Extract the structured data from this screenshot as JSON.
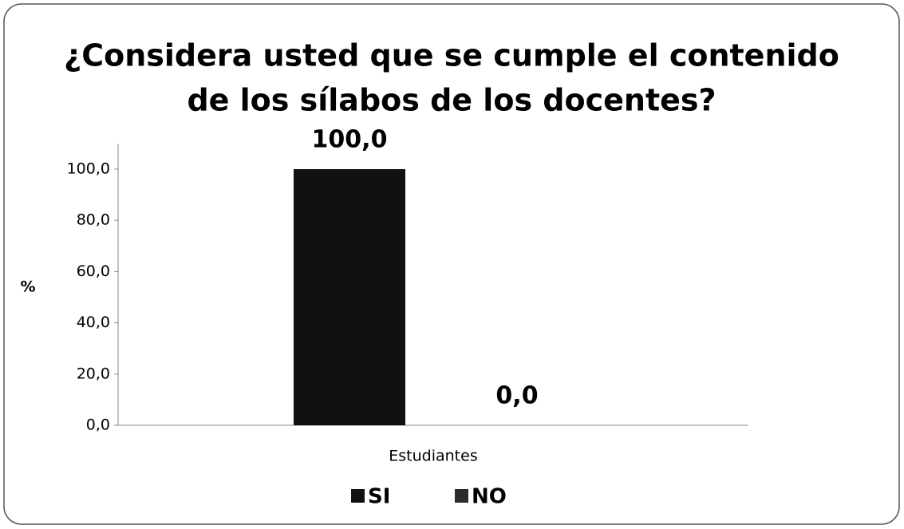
{
  "chart_data": {
    "type": "bar",
    "title": [
      "¿Considera usted que se cumple el contenido",
      "de los sílabos de los docentes?"
    ],
    "ylabel": "%",
    "categories": [
      "Estudiantes"
    ],
    "series": [
      {
        "name": "SI",
        "color": "#111111",
        "values": [
          100
        ],
        "value_labels": [
          "100,0"
        ]
      },
      {
        "name": "NO",
        "color": "#2b2b2b",
        "values": [
          0
        ],
        "value_labels": [
          "0,0"
        ]
      }
    ],
    "ylim": [
      0,
      100
    ],
    "yticks": [
      {
        "value": 0,
        "label": "0,0"
      },
      {
        "value": 20,
        "label": "20,0"
      },
      {
        "value": 40,
        "label": "40,0"
      },
      {
        "value": 60,
        "label": "60,0"
      },
      {
        "value": 80,
        "label": "80,0"
      },
      {
        "value": 100,
        "label": "100,0"
      }
    ],
    "legend": "bottom"
  }
}
